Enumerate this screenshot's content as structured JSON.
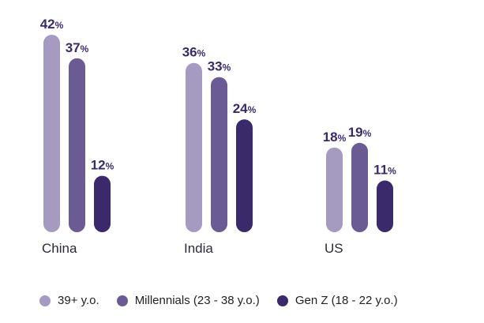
{
  "chart_data": {
    "type": "bar",
    "categories": [
      "China",
      "India",
      "US"
    ],
    "series": [
      {
        "name": "39+ y.o.",
        "values": [
          42,
          36,
          18
        ],
        "color": "#a59abf"
      },
      {
        "name": "Millennials (23 - 38 y.o.)",
        "values": [
          37,
          33,
          19
        ],
        "color": "#6b5b95"
      },
      {
        "name": "Gen Z (18 - 22 y.o.)",
        "values": [
          12,
          24,
          11
        ],
        "color": "#3a2a6b"
      }
    ],
    "value_suffix": "%",
    "ylim": [
      0,
      42
    ],
    "grid": false,
    "legend_position": "bottom"
  }
}
